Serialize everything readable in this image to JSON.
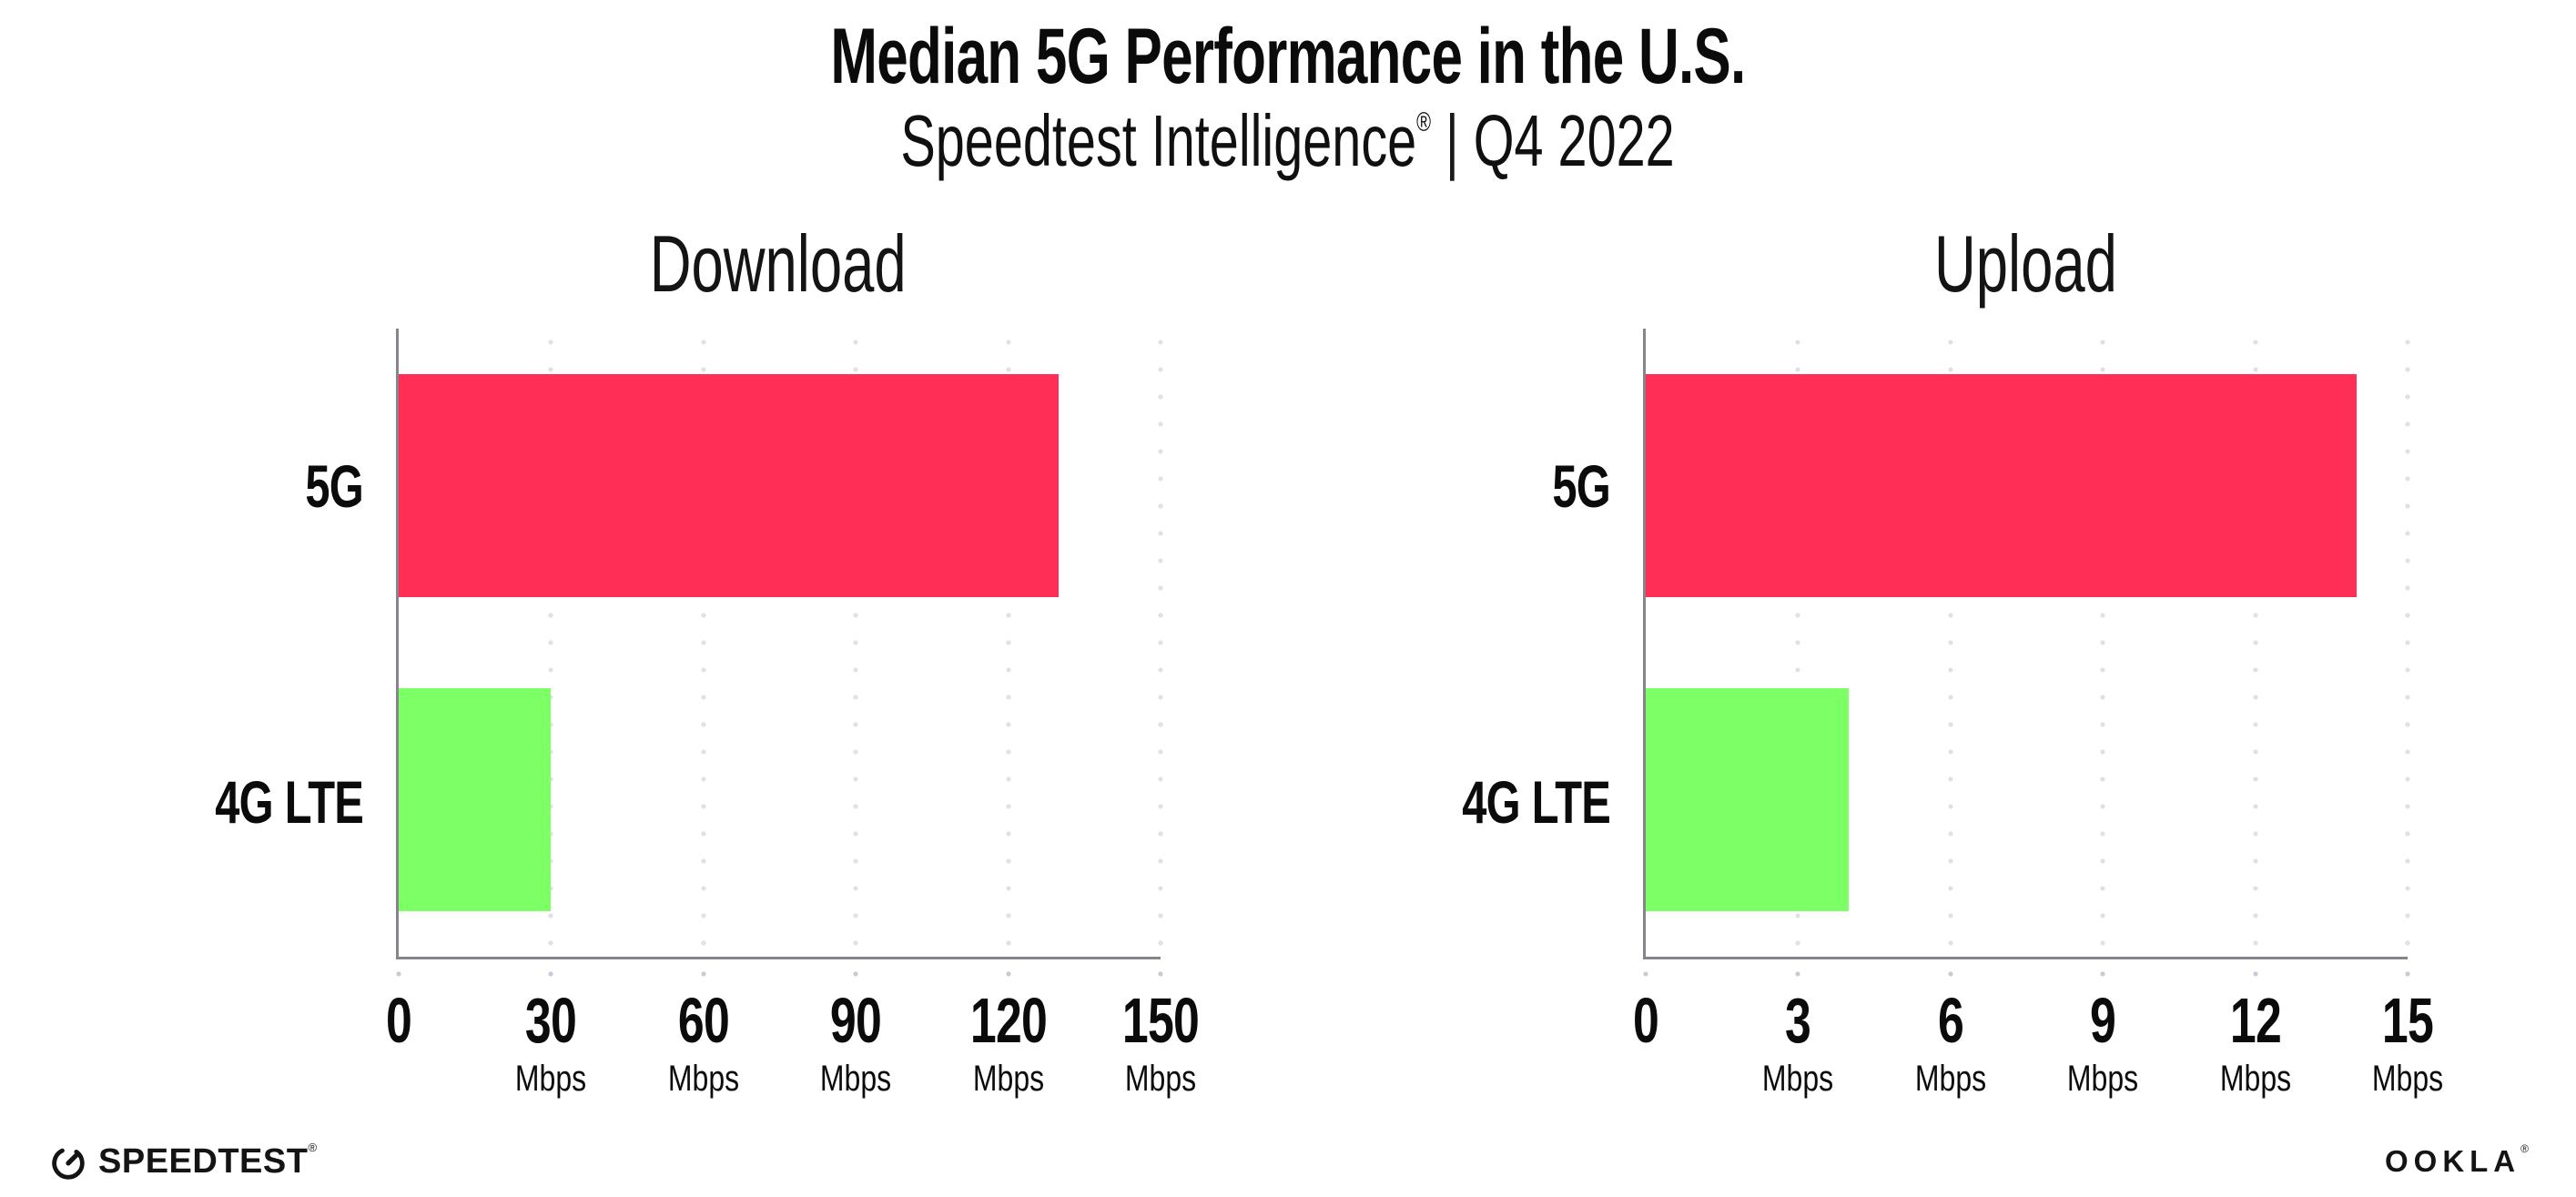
{
  "header": {
    "title": "Median 5G Performance in the U.S.",
    "subtitle": {
      "brand": "Speedtest Intelligence",
      "registered_mark": "®",
      "separator": "|",
      "period": "Q4 2022"
    }
  },
  "chart_data": [
    {
      "type": "bar",
      "orientation": "horizontal",
      "title": "Download",
      "categories": [
        "5G",
        "4G LTE"
      ],
      "values": [
        130,
        30
      ],
      "unit": "Mbps",
      "xlabel": "",
      "ylabel": "",
      "xlim": [
        0,
        150
      ],
      "xticks": [
        0,
        30,
        60,
        90,
        120,
        150
      ],
      "bar_colors": [
        "#FF2E56",
        "#7DFF66"
      ],
      "grid": "vertical dotted gridlines at each labeled tick",
      "legend": "none"
    },
    {
      "type": "bar",
      "orientation": "horizontal",
      "title": "Upload",
      "categories": [
        "5G",
        "4G LTE"
      ],
      "values": [
        14,
        4
      ],
      "unit": "Mbps",
      "xlabel": "",
      "ylabel": "",
      "xlim": [
        0,
        15
      ],
      "xticks": [
        0,
        3,
        6,
        9,
        12,
        15
      ],
      "bar_colors": [
        "#FF2E56",
        "#7DFF66"
      ],
      "grid": "vertical dotted gridlines at each labeled tick",
      "legend": "none"
    }
  ],
  "footer": {
    "speedtest_wordmark": "SPEEDTEST",
    "speedtest_mark": "®",
    "speedtest_icon": "speedtest-gauge-icon",
    "ookla_wordmark": "OOKLA",
    "ookla_mark": "®"
  },
  "colors": {
    "bar_5g": "#FF2E56",
    "bar_4g_lte": "#7DFF66",
    "axis_line": "#85868C",
    "gridline_dots": "#DFE0EA",
    "text": "#0B0B0B",
    "background": "#FFFFFF"
  }
}
